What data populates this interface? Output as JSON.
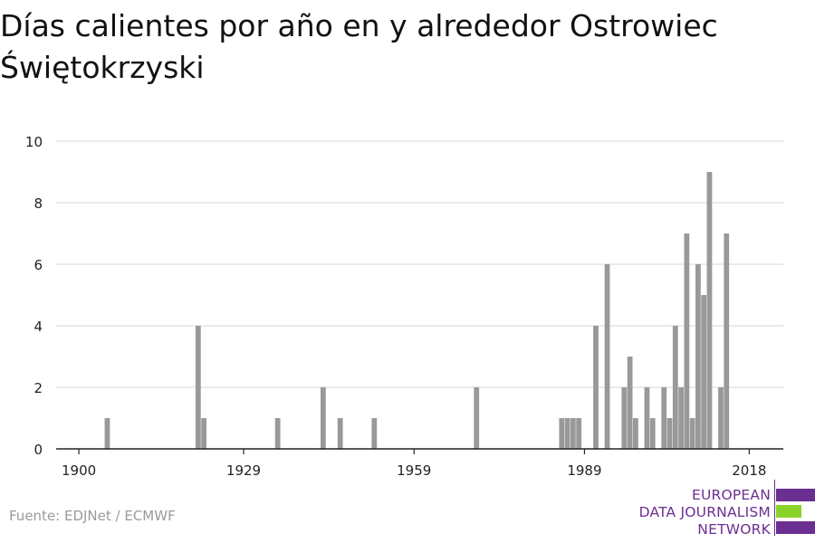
{
  "title": "Días calientes por año en y alrededor Ostrowiec Świętokrzyski",
  "source": "Fuente: EDJNet / ECMWF",
  "logo": {
    "line1": "EUROPEAN",
    "line2": "DATA JOURNALISM",
    "line3": "NETWORK",
    "colors": [
      "#6b2f91",
      "#8bd22a",
      "#6b2f91"
    ]
  },
  "colors": {
    "bar": "#999999",
    "grid": "#dddddd",
    "axis": "#222222"
  },
  "chart_data": {
    "type": "bar",
    "title": "Días calientes por año en y alrededor Ostrowiec Świętokrzyski",
    "xlabel": "",
    "ylabel": "",
    "xlim": [
      1896,
      2024
    ],
    "ylim": [
      0,
      10
    ],
    "yticks": [
      0,
      2,
      4,
      6,
      8,
      10
    ],
    "xticks": [
      1900,
      1929,
      1959,
      1989,
      2018
    ],
    "grid": true,
    "x": [
      1905,
      1921,
      1922,
      1935,
      1943,
      1946,
      1952,
      1970,
      1985,
      1986,
      1987,
      1988,
      1991,
      1993,
      1996,
      1997,
      1998,
      2000,
      2001,
      2003,
      2004,
      2005,
      2006,
      2007,
      2008,
      2009,
      2010,
      2011,
      2013,
      2014,
      2015
    ],
    "values": [
      1,
      4,
      1,
      1,
      2,
      1,
      1,
      2,
      1,
      1,
      1,
      1,
      4,
      6,
      2,
      3,
      1,
      2,
      1,
      2,
      1,
      4,
      2,
      7,
      1,
      6,
      5,
      9,
      2,
      7,
      0
    ]
  }
}
